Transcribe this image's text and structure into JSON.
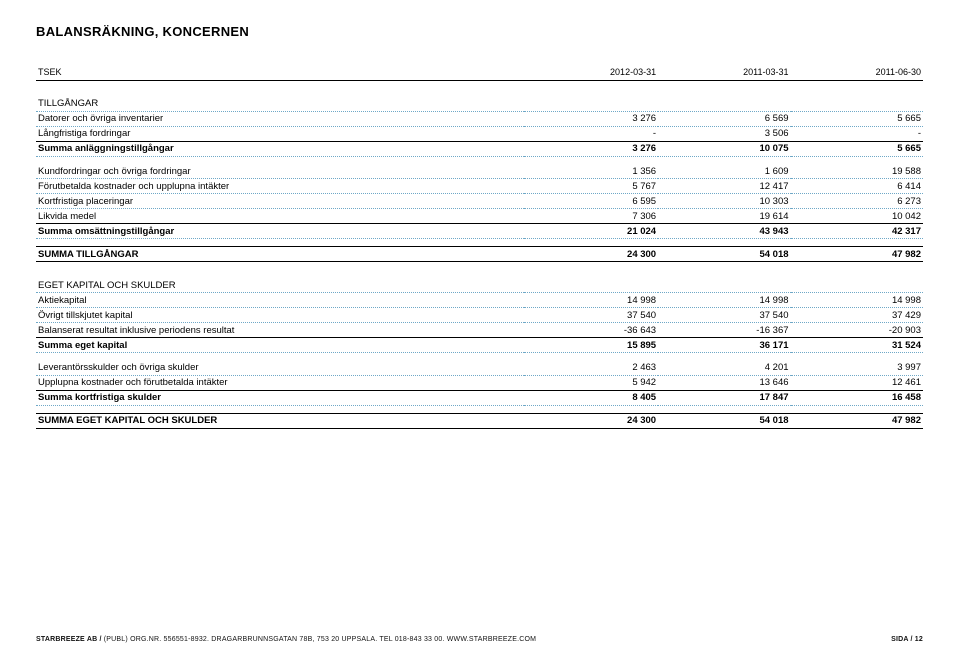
{
  "title": "BALANSRÄKNING, KONCERNEN",
  "columns": {
    "c0": "TSEK",
    "c1": "2012-03-31",
    "c2": "2011-03-31",
    "c3": "2011-06-30"
  },
  "sections": {
    "tillgangar": {
      "heading": "TILLGÅNGAR",
      "rows": {
        "r0": {
          "label": "Datorer och övriga inventarier",
          "v1": "3 276",
          "v2": "6 569",
          "v3": "5 665"
        },
        "r1": {
          "label": "Långfristiga fordringar",
          "v1": "-",
          "v2": "3 506",
          "v3": "-"
        },
        "sum": {
          "label": "Summa anläggningstillgångar",
          "v1": "3 276",
          "v2": "10 075",
          "v3": "5 665"
        }
      }
    },
    "omsattning": {
      "rows": {
        "r0": {
          "label": "Kundfordringar och övriga fordringar",
          "v1": "1 356",
          "v2": "1 609",
          "v3": "19 588"
        },
        "r1": {
          "label": "Förutbetalda kostnader och upplupna intäkter",
          "v1": "5 767",
          "v2": "12 417",
          "v3": "6 414"
        },
        "r2": {
          "label": "Kortfristiga placeringar",
          "v1": "6 595",
          "v2": "10 303",
          "v3": "6 273"
        },
        "r3": {
          "label": "Likvida medel",
          "v1": "7 306",
          "v2": "19 614",
          "v3": "10 042"
        },
        "sum": {
          "label": "Summa omsättningstillgångar",
          "v1": "21 024",
          "v2": "43 943",
          "v3": "42 317"
        }
      }
    },
    "summa_tillgangar": {
      "label": "SUMMA TILLGÅNGAR",
      "v1": "24 300",
      "v2": "54 018",
      "v3": "47 982"
    },
    "eget": {
      "heading": "EGET KAPITAL OCH SKULDER",
      "rows": {
        "r0": {
          "label": "Aktiekapital",
          "v1": "14 998",
          "v2": "14 998",
          "v3": "14 998"
        },
        "r1": {
          "label": "Övrigt tillskjutet kapital",
          "v1": "37 540",
          "v2": "37 540",
          "v3": "37 429"
        },
        "r2": {
          "label": "Balanserat resultat inklusive periodens resultat",
          "v1": "-36 643",
          "v2": "-16 367",
          "v3": "-20 903"
        },
        "sum": {
          "label": "Summa eget kapital",
          "v1": "15 895",
          "v2": "36 171",
          "v3": "31 524"
        }
      }
    },
    "skulder": {
      "rows": {
        "r0": {
          "label": "Leverantörsskulder och övriga skulder",
          "v1": "2 463",
          "v2": "4 201",
          "v3": "3 997"
        },
        "r1": {
          "label": "Upplupna kostnader och förutbetalda intäkter",
          "v1": "5 942",
          "v2": "13 646",
          "v3": "12 461"
        },
        "sum": {
          "label": "Summa kortfristiga skulder",
          "v1": "8 405",
          "v2": "17 847",
          "v3": "16 458"
        }
      }
    },
    "summa_eget": {
      "label": "SUMMA EGET KAPITAL OCH SKULDER",
      "v1": "24 300",
      "v2": "54 018",
      "v3": "47 982"
    }
  },
  "footer": {
    "left_bold": "STARBREEZE AB /",
    "left_rest": " (PUBL) ORG.NR. 556551-8932. DRAGARBRUNNSGATAN 78B, 753 20 UPPSALA. TEL 018-843 33 00. WWW.STARBREEZE.COM",
    "right": "SIDA / 12"
  }
}
